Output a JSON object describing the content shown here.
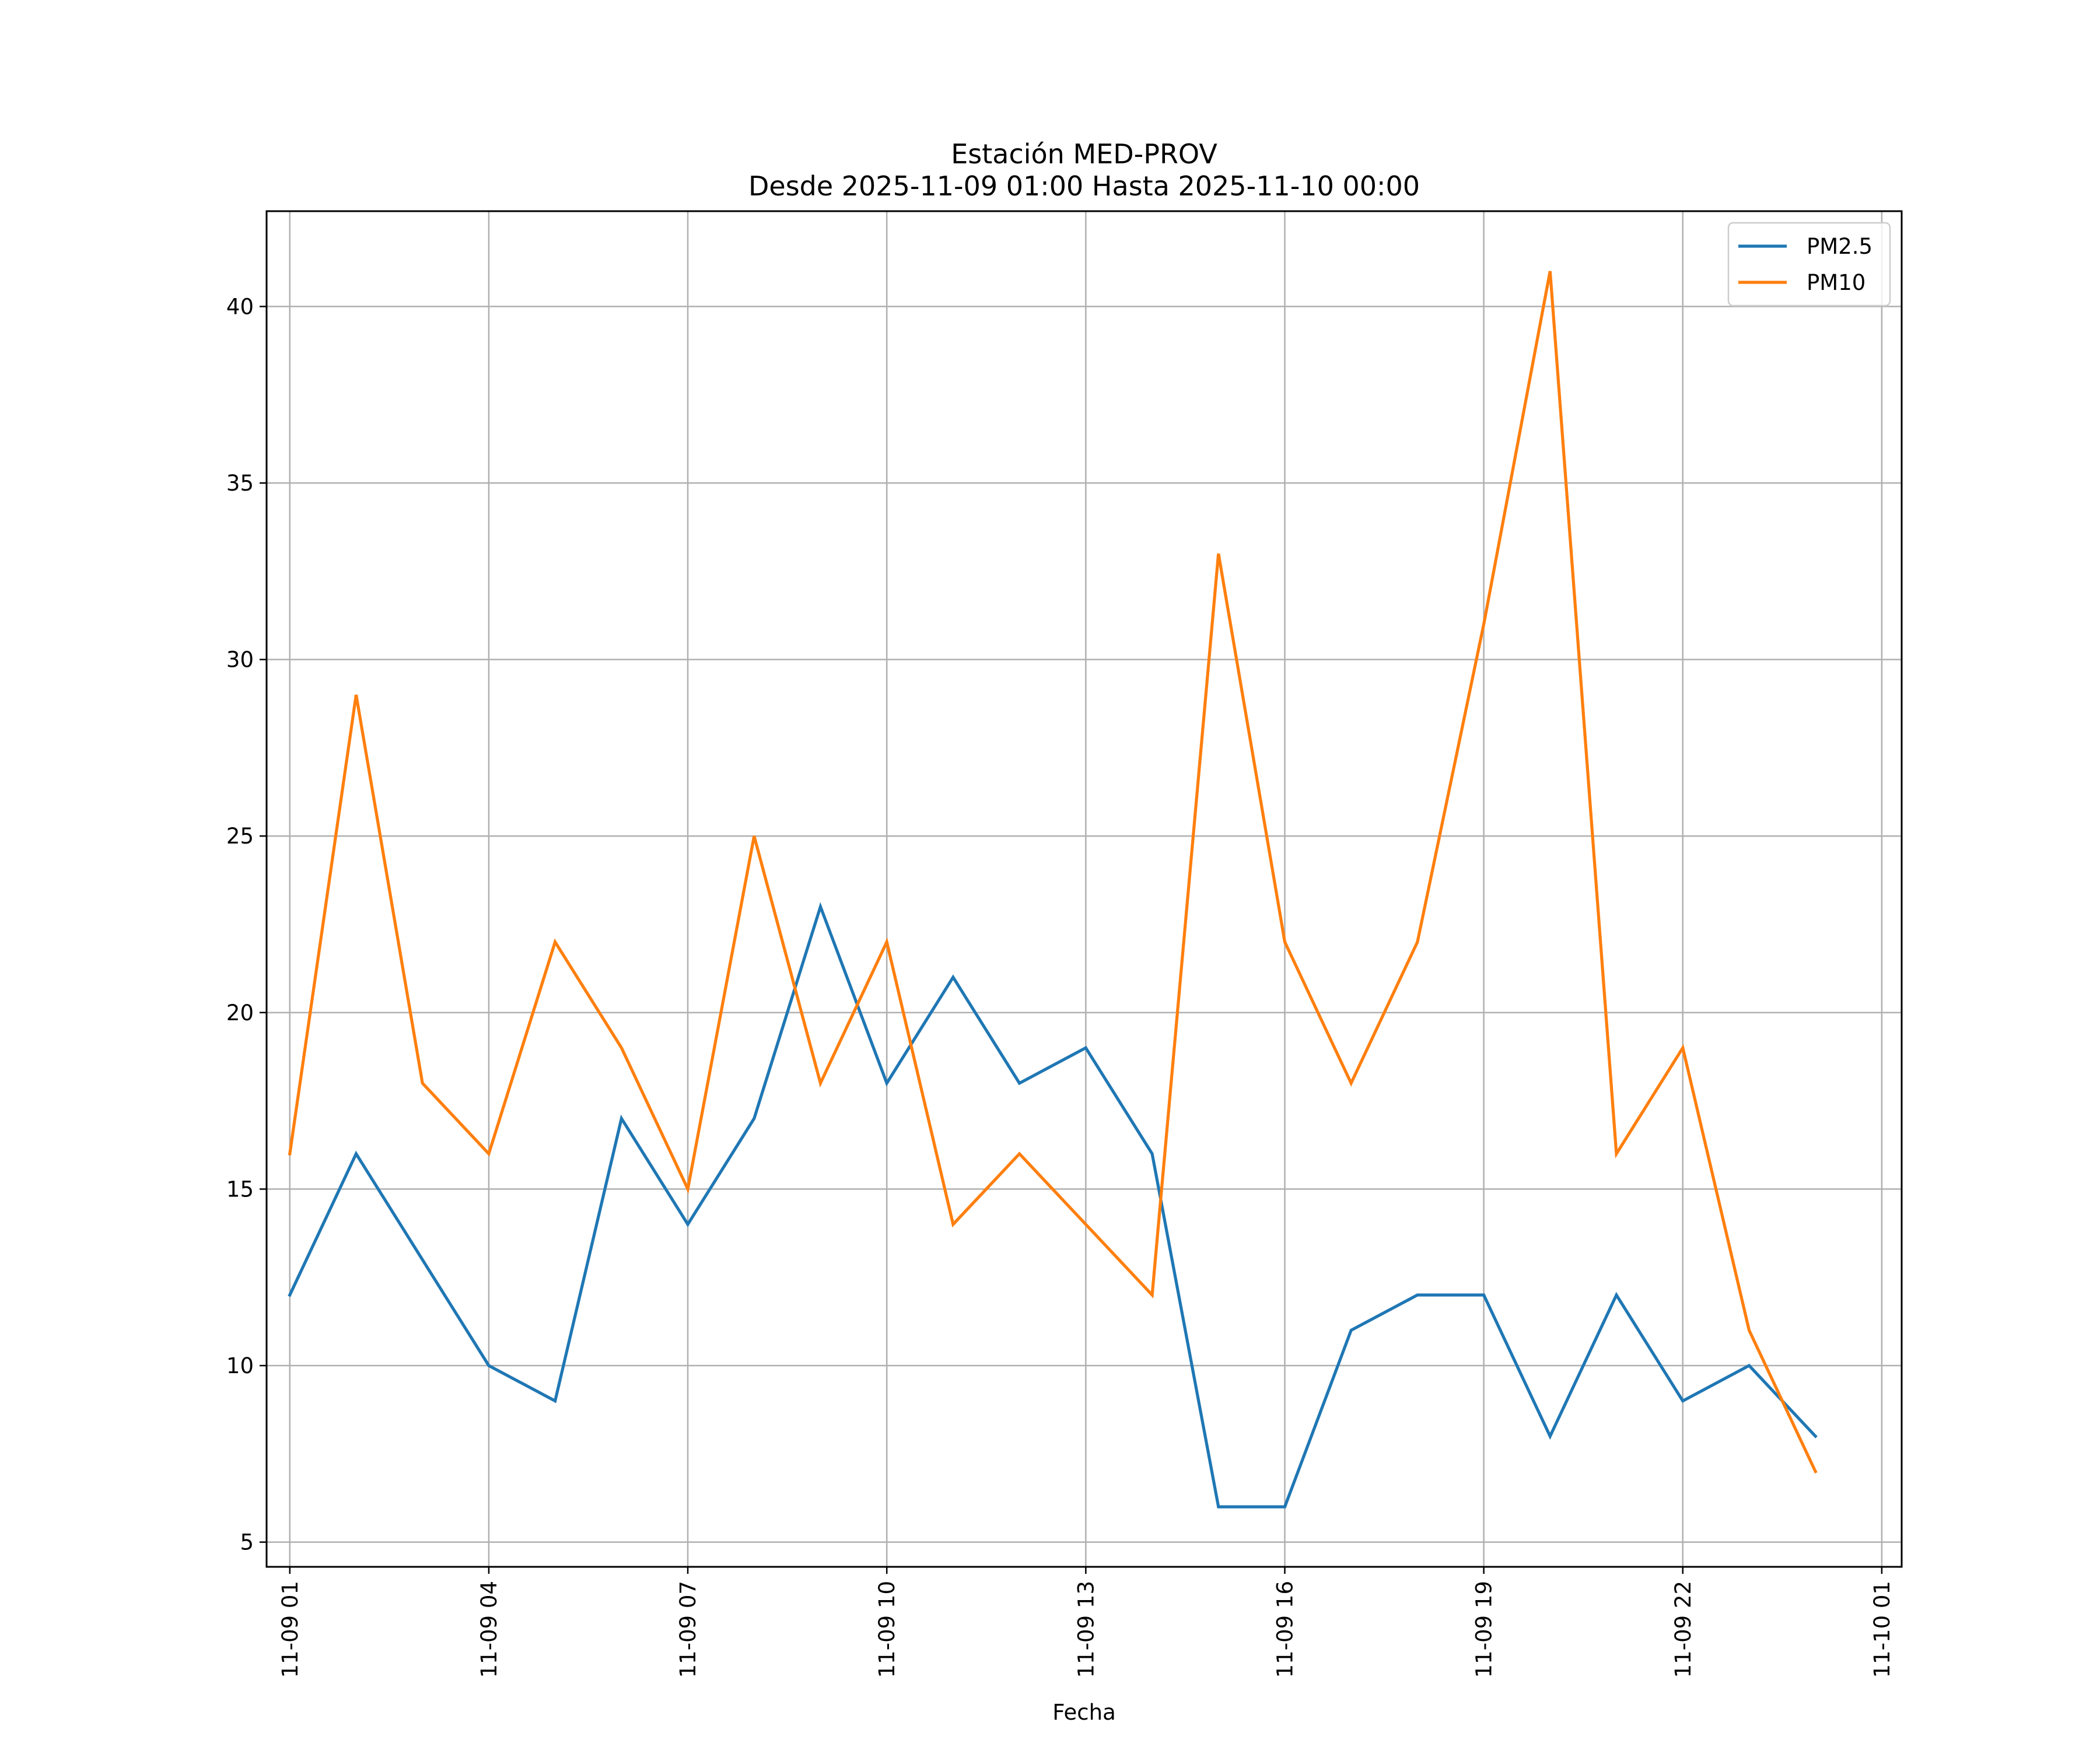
{
  "chart_data": {
    "type": "line",
    "title": "Estación MED-PROV",
    "subtitle": "Desde 2025-11-09 01:00 Hasta 2025-11-10 00:00",
    "xlabel": "Fecha",
    "ylabel": "",
    "x_hours": [
      1,
      2,
      3,
      4,
      5,
      6,
      7,
      8,
      9,
      10,
      11,
      12,
      13,
      14,
      15,
      16,
      17,
      18,
      19,
      20,
      21,
      22,
      23,
      24
    ],
    "x_range_hours": [
      0.65,
      25.3
    ],
    "ylim": [
      4.3,
      42.7
    ],
    "yticks": [
      5,
      10,
      15,
      20,
      25,
      30,
      35,
      40
    ],
    "xticks": [
      {
        "hour": 1,
        "label": "11-09 01"
      },
      {
        "hour": 4,
        "label": "11-09 04"
      },
      {
        "hour": 7,
        "label": "11-09 07"
      },
      {
        "hour": 10,
        "label": "11-09 10"
      },
      {
        "hour": 13,
        "label": "11-09 13"
      },
      {
        "hour": 16,
        "label": "11-09 16"
      },
      {
        "hour": 19,
        "label": "11-09 19"
      },
      {
        "hour": 22,
        "label": "11-09 22"
      },
      {
        "hour": 25,
        "label": "11-10 01"
      }
    ],
    "grid": true,
    "legend_position": "top-right",
    "series": [
      {
        "name": "PM2.5",
        "color": "#1f77b4",
        "values": [
          12,
          16,
          13,
          10,
          9,
          17,
          14,
          17,
          23,
          18,
          21,
          18,
          19,
          16,
          6,
          6,
          11,
          12,
          12,
          8,
          12,
          9,
          10,
          8
        ]
      },
      {
        "name": "PM10",
        "color": "#ff7f0e",
        "values": [
          16,
          29,
          18,
          16,
          22,
          19,
          15,
          25,
          18,
          22,
          14,
          16,
          14,
          12,
          33,
          22,
          18,
          22,
          31,
          41,
          16,
          19,
          11,
          7
        ]
      }
    ]
  }
}
